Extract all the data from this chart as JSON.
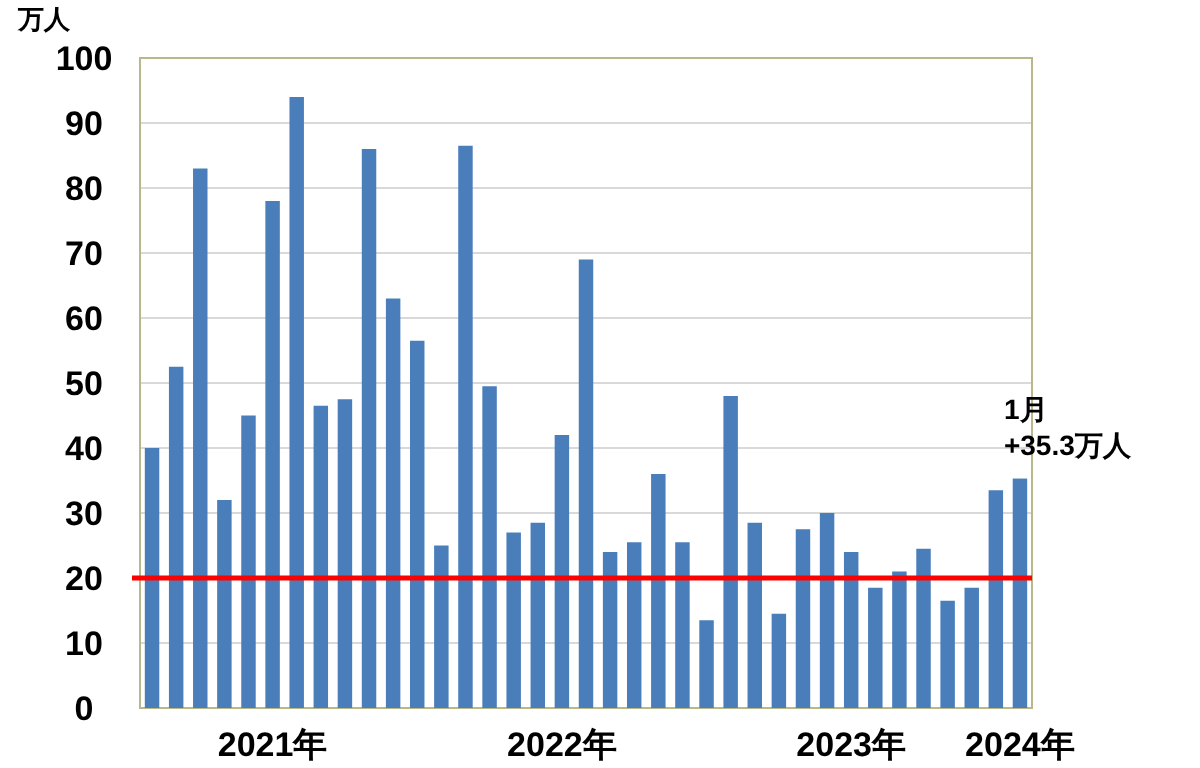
{
  "chart_data": {
    "type": "bar",
    "ylabel": "万人",
    "categories": [
      null,
      null,
      null,
      null,
      null,
      "2021年",
      null,
      null,
      null,
      null,
      null,
      null,
      null,
      null,
      null,
      null,
      null,
      "2022年",
      null,
      null,
      null,
      null,
      null,
      null,
      null,
      null,
      null,
      null,
      null,
      "2023年",
      null,
      null,
      null,
      null,
      null,
      null,
      "2024年"
    ],
    "values": [
      40,
      52.5,
      83,
      32,
      45,
      78,
      94,
      46.5,
      47.5,
      86,
      63,
      56.5,
      25,
      86.5,
      49.5,
      27,
      28.5,
      42,
      69,
      24,
      25.5,
      36,
      25.5,
      13.5,
      48,
      28.5,
      14.5,
      27.5,
      30,
      24,
      18.5,
      21,
      24.5,
      16.5,
      18.5,
      33.5,
      35.3
    ],
    "color": "#4a7ebb",
    "ylim": [
      0,
      100
    ],
    "yticks": [
      0,
      10,
      20,
      30,
      40,
      50,
      60,
      70,
      80,
      90,
      100
    ],
    "grid": "y",
    "ref_lines": [
      {
        "axis": "y",
        "value": 20,
        "color": "#ff0000"
      }
    ],
    "annotations": [
      {
        "text": "1月\n+35.3万人",
        "x": "2024年",
        "y": 35.3
      }
    ]
  }
}
